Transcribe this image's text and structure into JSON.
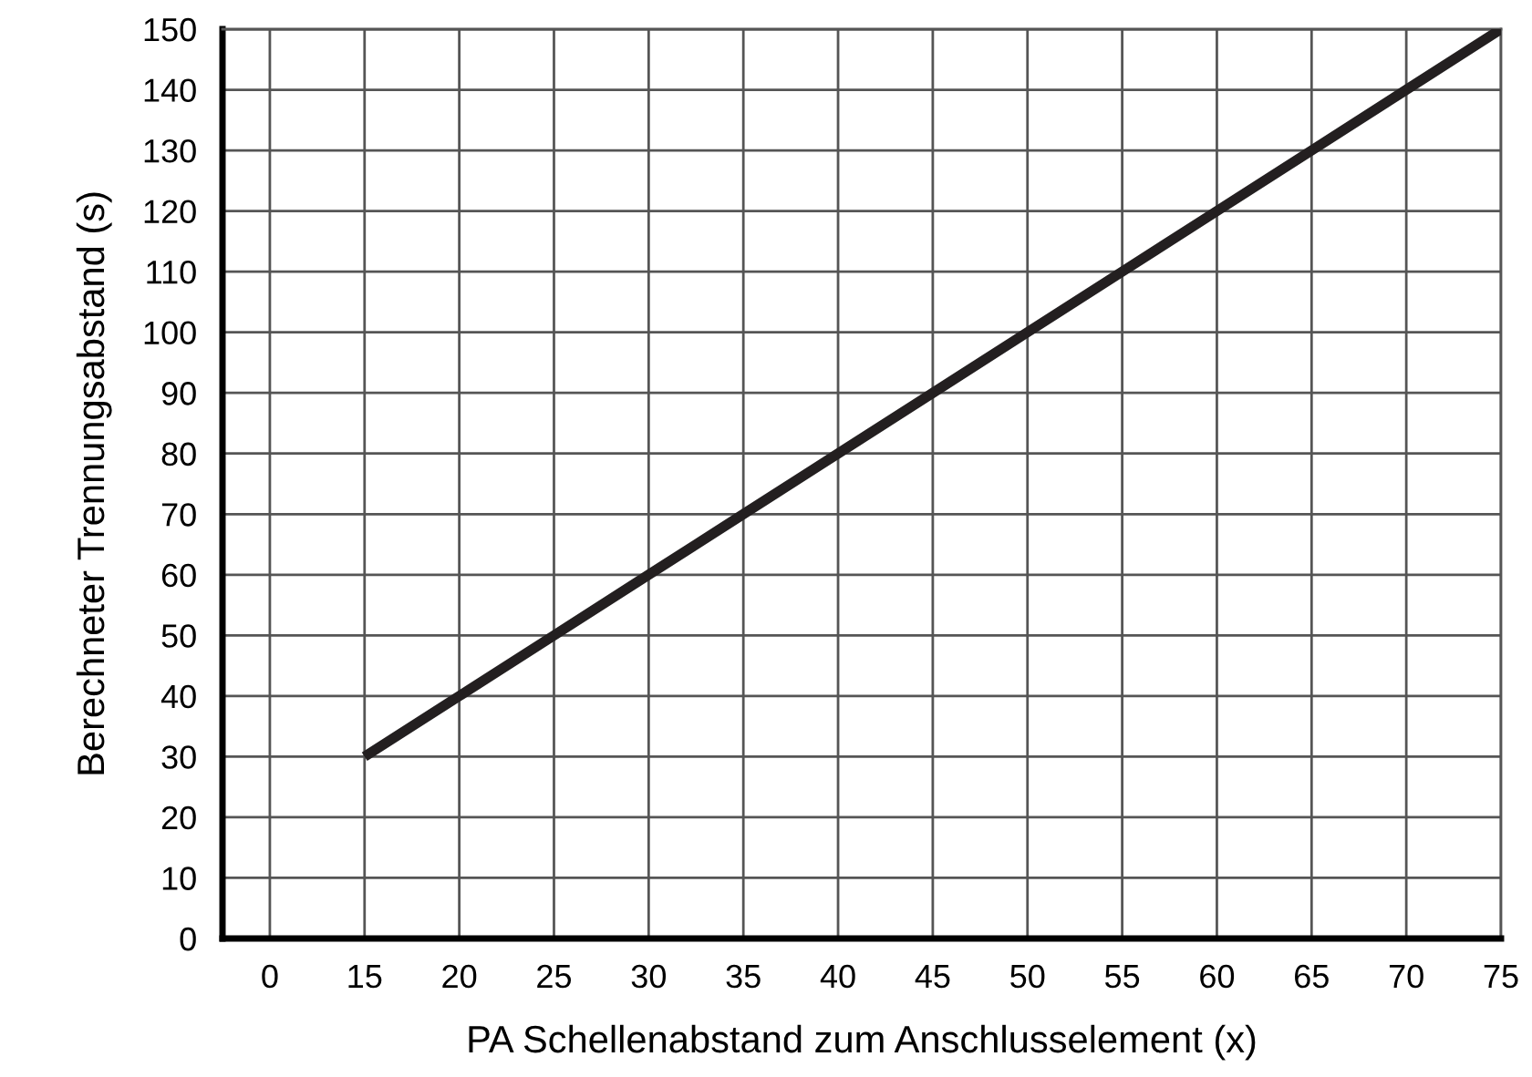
{
  "chart_data": {
    "type": "line",
    "xlabel": "PA Schellenabstand zum Anschlusselement (x)",
    "ylabel": "Berechneter Trennungsabstand (s)",
    "categories": [
      "0",
      "15",
      "20",
      "25",
      "30",
      "35",
      "40",
      "45",
      "50",
      "55",
      "60",
      "65",
      "70",
      "75"
    ],
    "series": [
      {
        "color": "#231f20",
        "values": [
          null,
          30,
          40,
          50,
          60,
          70,
          80,
          90,
          100,
          110,
          120,
          130,
          140,
          150
        ]
      }
    ],
    "ylim": [
      0,
      150
    ],
    "yticks": [
      0,
      10,
      20,
      30,
      40,
      50,
      60,
      70,
      80,
      90,
      100,
      110,
      120,
      130,
      140,
      150
    ],
    "grid": true,
    "marker": "none",
    "line_style": "solid"
  }
}
